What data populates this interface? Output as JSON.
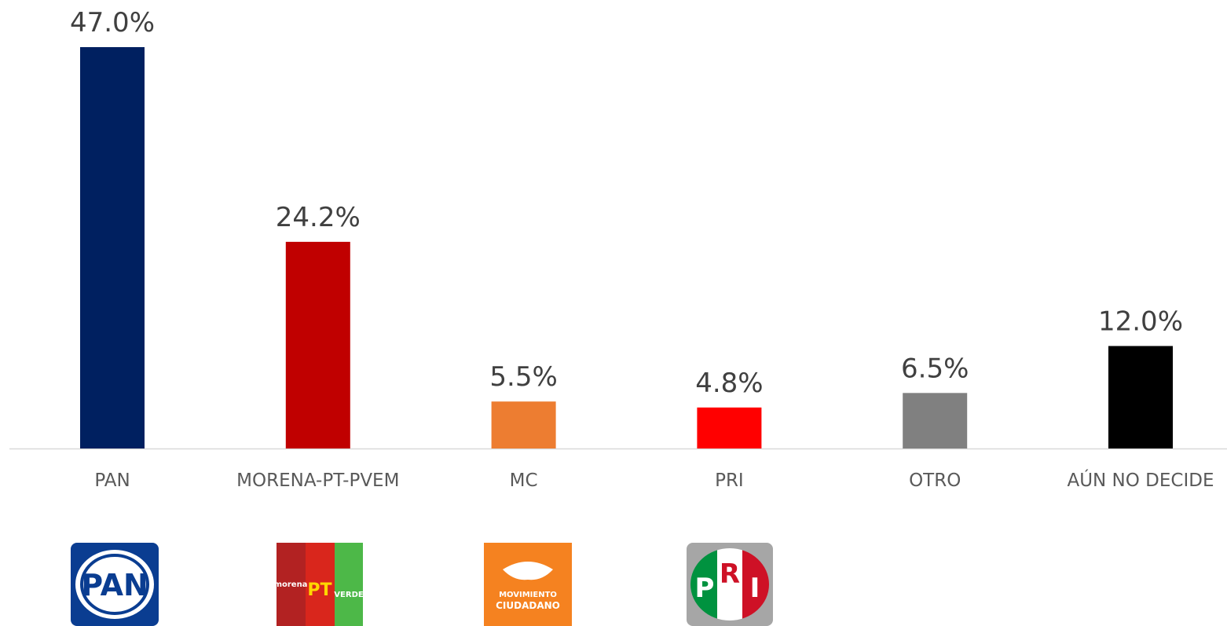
{
  "chart_data": {
    "type": "bar",
    "categories": [
      "PAN",
      "MORENA-PT-PVEM",
      "MC",
      "PRI",
      "OTRO",
      "AÚN NO DECIDE"
    ],
    "values": [
      47.0,
      24.2,
      5.5,
      4.8,
      6.5,
      12.0
    ],
    "value_labels": [
      "47.0%",
      "24.2%",
      "5.5%",
      "4.8%",
      "6.5%",
      "12.0%"
    ],
    "colors": [
      "#002060",
      "#c00000",
      "#ed7d31",
      "#ff0000",
      "#808080",
      "#000000"
    ]
  },
  "logos": [
    [
      "PAN"
    ],
    [
      "morena",
      "PT",
      "VERDE"
    ],
    [
      "MOVIMIENTO",
      "CIUDADANO"
    ],
    [
      "P",
      "R",
      "I"
    ]
  ]
}
